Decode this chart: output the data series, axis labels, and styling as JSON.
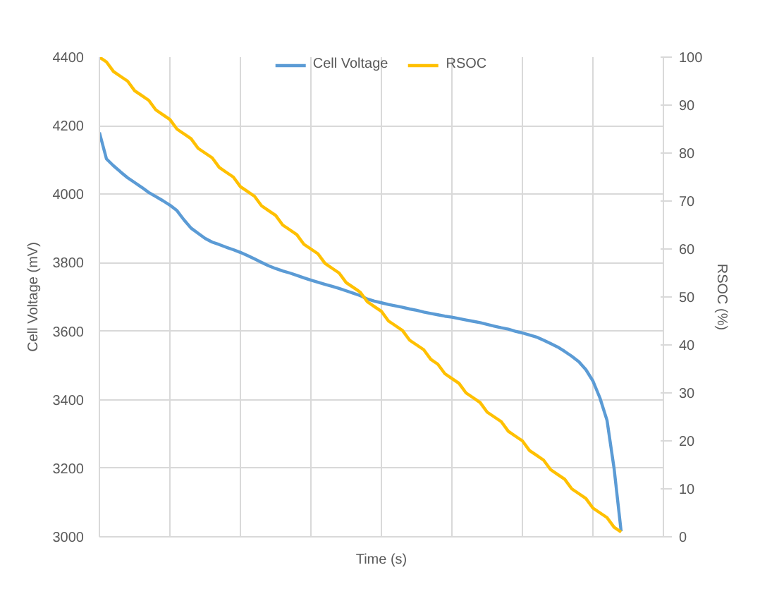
{
  "chart_data": {
    "type": "line",
    "xlabel": "Time (s)",
    "ylabel": "Cell Voltage (mV)",
    "y2label": "RSOC (%)",
    "categories": [
      null,
      null,
      null,
      null,
      null,
      null,
      null,
      null,
      null,
      null,
      null,
      null,
      null,
      null,
      null,
      null,
      null,
      null,
      null,
      null,
      null,
      null,
      null,
      null,
      null,
      null,
      null,
      null,
      null,
      null,
      null,
      null,
      null,
      null,
      null,
      null,
      null,
      null,
      null,
      null,
      null,
      null,
      null,
      null,
      null,
      null,
      null,
      null,
      null,
      null,
      null,
      null,
      null,
      null,
      null,
      null,
      null,
      null,
      null,
      null,
      null,
      null,
      null,
      null,
      null,
      null,
      null,
      null,
      null,
      null,
      null,
      null,
      null,
      null,
      null,
      null,
      null,
      null,
      null,
      null,
      null
    ],
    "ylim": [
      3000,
      4400
    ],
    "yticks": [
      3000,
      3200,
      3400,
      3600,
      3800,
      4000,
      4200,
      4400
    ],
    "y2lim": [
      0,
      100
    ],
    "y2ticks": [
      0,
      10,
      20,
      30,
      40,
      50,
      60,
      70,
      80,
      90,
      100
    ],
    "grid": true,
    "legend": "top",
    "tick_labels": "y",
    "line_style": "solid",
    "series": [
      {
        "name": "Cell Voltage",
        "color": "#5b9bd5",
        "values": [
          4180,
          4103,
          4083,
          4065,
          4048,
          4034,
          4020,
          4005,
          3993,
          3981,
          3968,
          3952,
          3925,
          3901,
          3886,
          3871,
          3860,
          3853,
          3845,
          3838,
          3830,
          3821,
          3811,
          3801,
          3791,
          3783,
          3776,
          3770,
          3763,
          3756,
          3749,
          3743,
          3737,
          3731,
          3725,
          3718,
          3711,
          3704,
          3694,
          3688,
          3683,
          3678,
          3674,
          3670,
          3665,
          3661,
          3656,
          3652,
          3648,
          3644,
          3641,
          3637,
          3633,
          3629,
          3625,
          3620,
          3615,
          3610,
          3606,
          3600,
          3595,
          3589,
          3583,
          3574,
          3564,
          3554,
          3541,
          3527,
          3511,
          3488,
          3455,
          3405,
          3340,
          3200,
          3016,
          null,
          null,
          null,
          null,
          null,
          null
        ]
      },
      {
        "name": "RSOC",
        "color": "#ffc000",
        "axis": "y2",
        "values": [
          100,
          99,
          97,
          96,
          95,
          93,
          92,
          91,
          89,
          88,
          87,
          85,
          84,
          83,
          81,
          80,
          79,
          77,
          76,
          75,
          73,
          72,
          71,
          69,
          68,
          67,
          65,
          64,
          63,
          61,
          60,
          59,
          57,
          56,
          55,
          53,
          52,
          51,
          49,
          48,
          47,
          45,
          44,
          43,
          41,
          40,
          39,
          37,
          36,
          34,
          33,
          32,
          30,
          29,
          28,
          26,
          25,
          24,
          22,
          21,
          20,
          18,
          17,
          16,
          14,
          13,
          12,
          10,
          9,
          8,
          6,
          5,
          4,
          2,
          1,
          null,
          null,
          null,
          null,
          null,
          null
        ]
      }
    ]
  }
}
